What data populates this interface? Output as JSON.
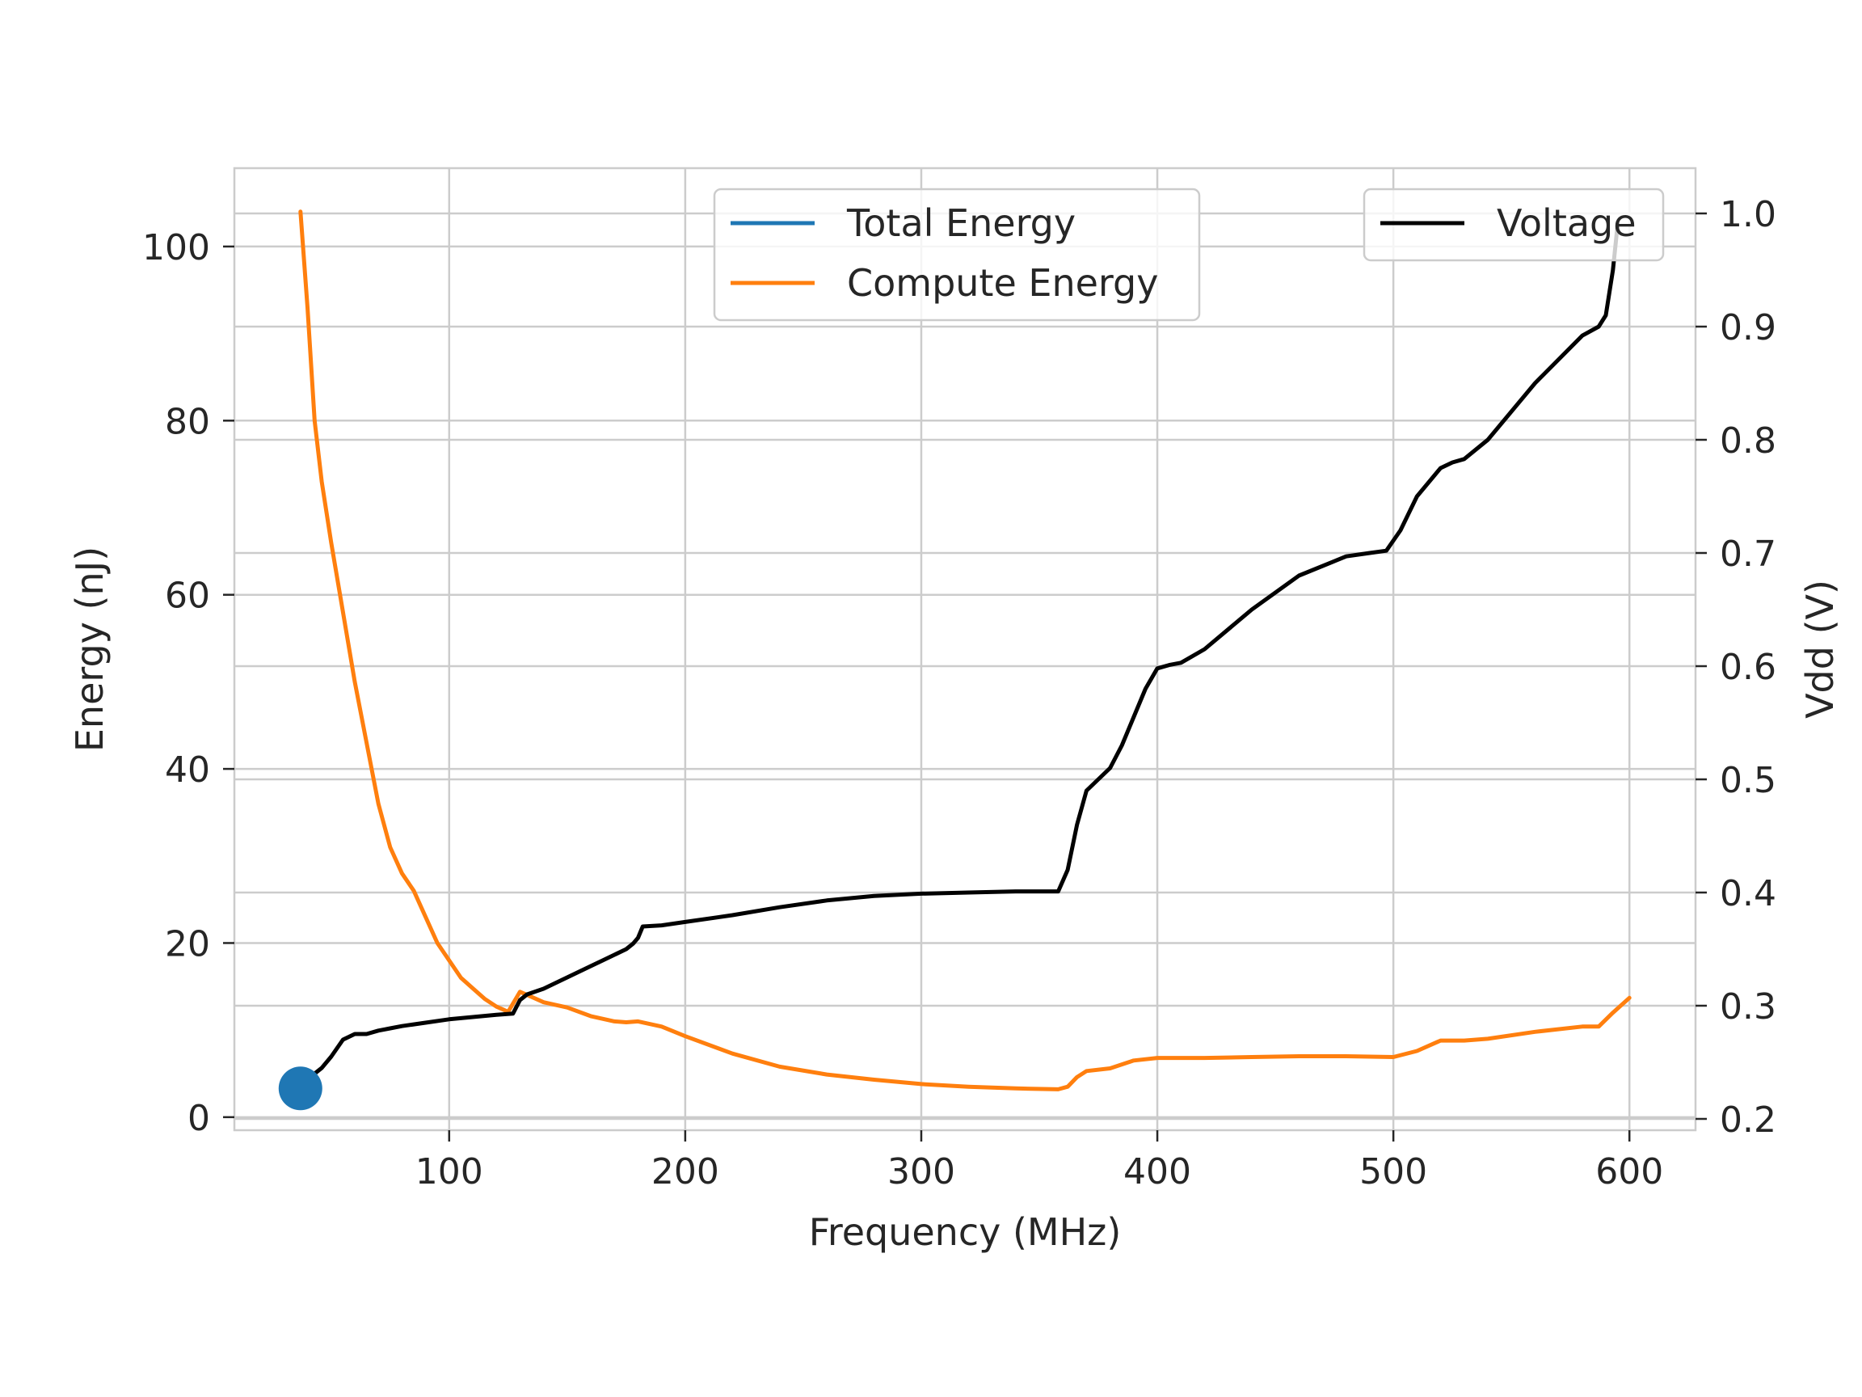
{
  "chart_data": {
    "type": "line",
    "title": "",
    "xlabel": "Frequency (MHz)",
    "ylabel": "Energy (nJ)",
    "y2label": "Vdd (V)",
    "xlim": [
      9,
      628
    ],
    "ylim": [
      -1.5,
      109
    ],
    "y2lim": [
      0.19,
      1.04
    ],
    "xticks": [
      100,
      200,
      300,
      400,
      500,
      600
    ],
    "yticks": [
      0,
      20,
      40,
      60,
      80,
      100
    ],
    "y2ticks": [
      0.2,
      0.3,
      0.4,
      0.5,
      0.6,
      0.7,
      0.8,
      0.9,
      1.0
    ],
    "y2tick_labels": [
      "0.2",
      "0.3",
      "0.4",
      "0.5",
      "0.6",
      "0.7",
      "0.8",
      "0.9",
      "1.0"
    ],
    "grid": true,
    "series": [
      {
        "name": "Total Energy",
        "axis": "left",
        "color": "#1f77b4",
        "marker": "circle",
        "x": [
          37
        ],
        "y": [
          3.3
        ]
      },
      {
        "name": "Compute Energy",
        "axis": "left",
        "color": "#ff7f0e",
        "x": [
          37,
          40,
          43,
          46,
          50,
          55,
          60,
          65,
          70,
          75,
          80,
          85,
          90,
          95,
          100,
          105,
          110,
          115,
          120,
          125,
          130,
          135,
          140,
          150,
          160,
          170,
          175,
          180,
          190,
          200,
          220,
          240,
          260,
          280,
          300,
          320,
          340,
          358,
          362,
          366,
          370,
          380,
          390,
          400,
          420,
          440,
          460,
          480,
          500,
          510,
          520,
          530,
          540,
          560,
          580,
          587,
          593,
          600
        ],
        "y": [
          104,
          93,
          80,
          73,
          66,
          58,
          50,
          43,
          36,
          31,
          28,
          26,
          23,
          20,
          18,
          16,
          14.8,
          13.6,
          12.7,
          12.1,
          14.4,
          13.8,
          13.2,
          12.6,
          11.6,
          11.0,
          10.9,
          11.0,
          10.4,
          9.3,
          7.3,
          5.8,
          4.9,
          4.3,
          3.8,
          3.5,
          3.3,
          3.2,
          3.5,
          4.6,
          5.3,
          5.6,
          6.5,
          6.8,
          6.8,
          6.9,
          7.0,
          7.0,
          6.9,
          7.6,
          8.8,
          8.8,
          9.0,
          9.8,
          10.4,
          10.4,
          12.0,
          13.7
        ]
      },
      {
        "name": "Voltage",
        "axis": "right",
        "color": "#000000",
        "x": [
          37,
          40,
          43,
          46,
          50,
          55,
          60,
          65,
          70,
          75,
          80,
          90,
          100,
          110,
          120,
          127,
          130,
          133,
          140,
          145,
          150,
          155,
          160,
          165,
          170,
          175,
          178,
          180,
          182,
          190,
          200,
          220,
          240,
          260,
          280,
          300,
          320,
          340,
          358,
          362,
          366,
          370,
          375,
          380,
          385,
          390,
          395,
          400,
          405,
          410,
          420,
          440,
          460,
          480,
          490,
          497,
          503,
          510,
          520,
          525,
          530,
          540,
          560,
          580,
          587,
          590,
          593,
          595
        ],
        "y": [
          0.225,
          0.235,
          0.24,
          0.245,
          0.255,
          0.27,
          0.275,
          0.275,
          0.278,
          0.28,
          0.282,
          0.285,
          0.288,
          0.29,
          0.292,
          0.293,
          0.305,
          0.31,
          0.315,
          0.32,
          0.325,
          0.33,
          0.335,
          0.34,
          0.345,
          0.35,
          0.355,
          0.36,
          0.37,
          0.371,
          0.374,
          0.38,
          0.387,
          0.393,
          0.397,
          0.399,
          0.4,
          0.401,
          0.401,
          0.42,
          0.46,
          0.49,
          0.5,
          0.51,
          0.53,
          0.555,
          0.58,
          0.598,
          0.601,
          0.603,
          0.615,
          0.65,
          0.68,
          0.697,
          0.7,
          0.702,
          0.72,
          0.75,
          0.775,
          0.78,
          0.783,
          0.8,
          0.85,
          0.892,
          0.9,
          0.91,
          0.95,
          0.99
        ]
      }
    ],
    "legends": [
      {
        "placement": "upper-center",
        "entries": [
          "Total Energy",
          "Compute Energy"
        ]
      },
      {
        "placement": "upper-right",
        "entries": [
          "Voltage"
        ]
      }
    ]
  }
}
